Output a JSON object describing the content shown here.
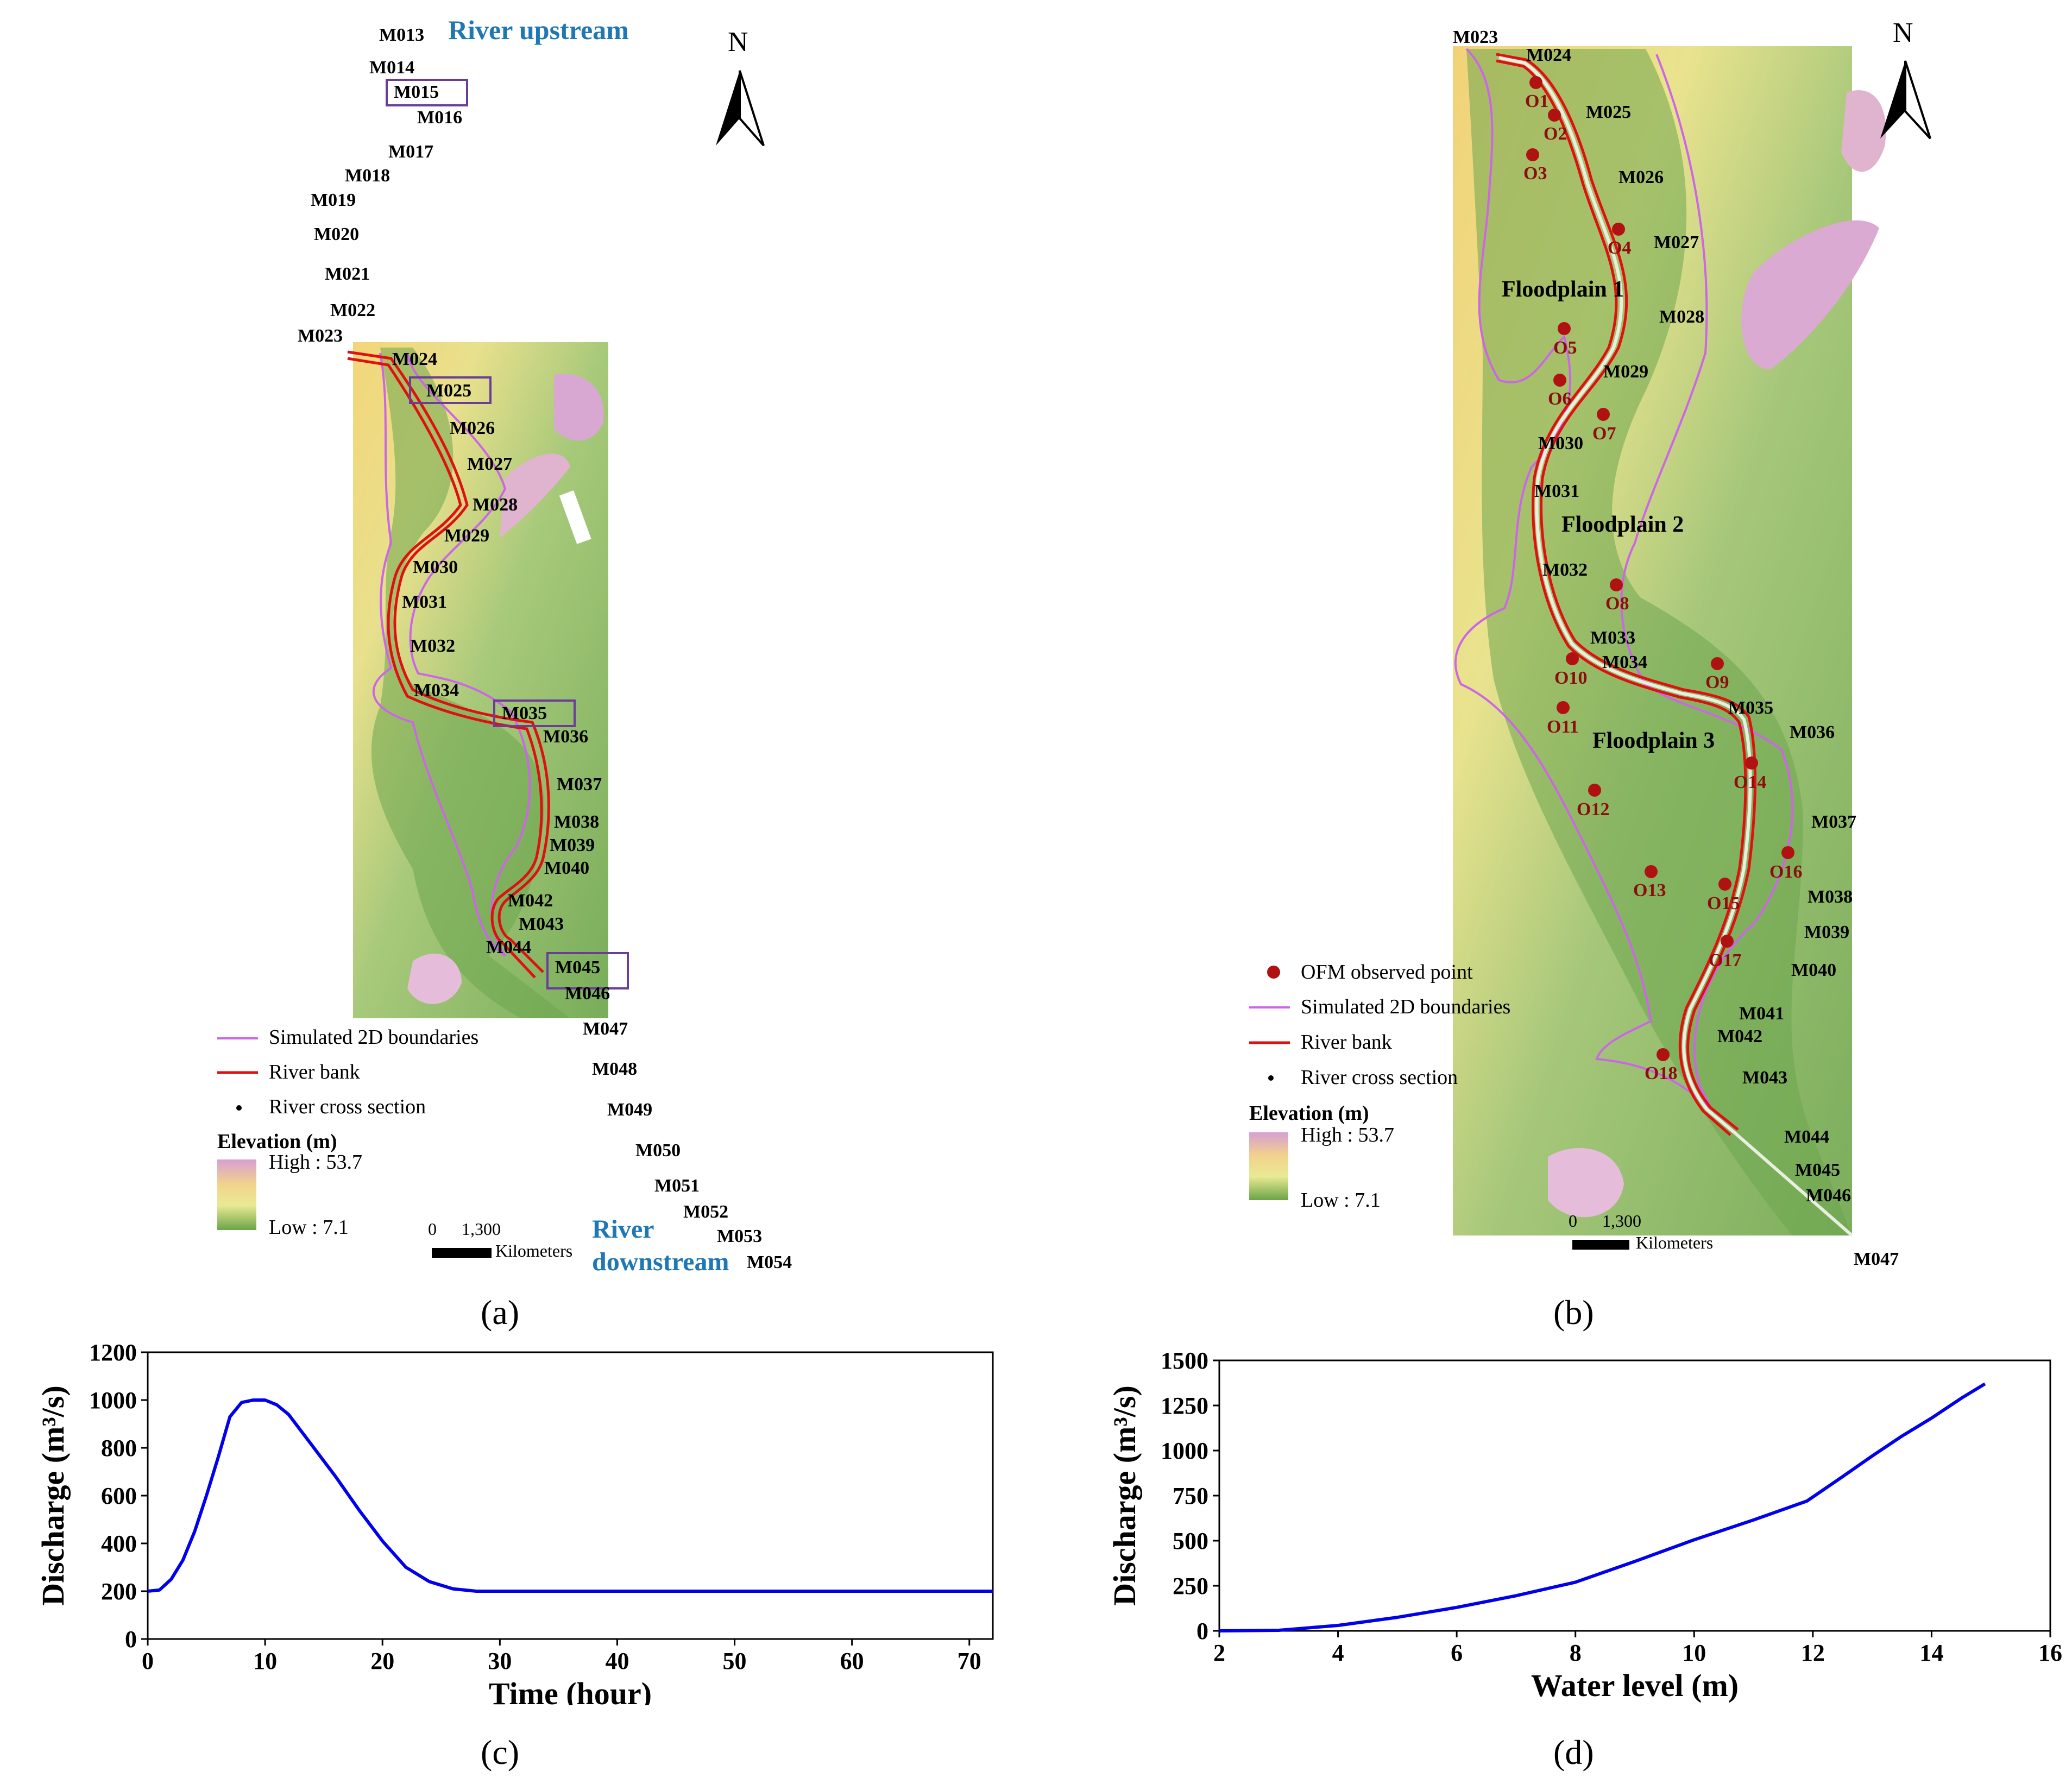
{
  "panels": {
    "a": {
      "caption": "(a)",
      "upstream_label": "River upstream",
      "downstream_label": [
        "River",
        "downstream"
      ],
      "north": "N",
      "cross_sections": [
        {
          "id": "M013"
        },
        {
          "id": "M014"
        },
        {
          "id": "M015",
          "boxed": true
        },
        {
          "id": "M016"
        },
        {
          "id": "M017"
        },
        {
          "id": "M018"
        },
        {
          "id": "M019"
        },
        {
          "id": "M020"
        },
        {
          "id": "M021"
        },
        {
          "id": "M022"
        },
        {
          "id": "M023"
        },
        {
          "id": "M024"
        },
        {
          "id": "M025",
          "boxed": true
        },
        {
          "id": "M026"
        },
        {
          "id": "M027"
        },
        {
          "id": "M028"
        },
        {
          "id": "M029"
        },
        {
          "id": "M030"
        },
        {
          "id": "M031"
        },
        {
          "id": "M032"
        },
        {
          "id": "M034"
        },
        {
          "id": "M035",
          "boxed": true
        },
        {
          "id": "M036"
        },
        {
          "id": "M037"
        },
        {
          "id": "M038"
        },
        {
          "id": "M039"
        },
        {
          "id": "M040"
        },
        {
          "id": "M042"
        },
        {
          "id": "M043"
        },
        {
          "id": "M044"
        },
        {
          "id": "M045",
          "boxed": true
        },
        {
          "id": "M046"
        },
        {
          "id": "M047"
        },
        {
          "id": "M048"
        },
        {
          "id": "M049"
        },
        {
          "id": "M050"
        },
        {
          "id": "M051"
        },
        {
          "id": "M052"
        },
        {
          "id": "M053"
        },
        {
          "id": "M054"
        }
      ],
      "legend": {
        "boundary": "Simulated 2D boundaries",
        "bank": "River bank",
        "section": "River cross section",
        "elev_title": "Elevation (m)",
        "high": "High : 53.7",
        "low": "Low : 7.1"
      },
      "scale": {
        "zero": "0",
        "value": "1,300",
        "unit": "Kilometers"
      }
    },
    "b": {
      "caption": "(b)",
      "north": "N",
      "floodplains": [
        "Floodplain 1",
        "Floodplain 2",
        "Floodplain 3"
      ],
      "cross_sections": [
        "M023",
        "M024",
        "M025",
        "M026",
        "M027",
        "M028",
        "M029",
        "M030",
        "M031",
        "M032",
        "M033",
        "M034",
        "M035",
        "M036",
        "M037",
        "M038",
        "M039",
        "M040",
        "M041",
        "M042",
        "M043",
        "M044",
        "M045",
        "M046",
        "M047"
      ],
      "observed_points": [
        "O1",
        "O2",
        "O3",
        "O4",
        "O5",
        "O6",
        "O7",
        "O8",
        "O9",
        "O10",
        "O11",
        "O12",
        "O13",
        "O14",
        "O15",
        "O16",
        "O17",
        "O18"
      ],
      "legend": {
        "observed": "OFM observed point",
        "boundary": "Simulated 2D boundaries",
        "bank": "River bank",
        "section": "River cross section",
        "elev_title": "Elevation (m)",
        "high": "High : 53.7",
        "low": "Low : 7.1"
      },
      "scale": {
        "zero": "0",
        "value": "1,300",
        "unit": "Kilometers"
      }
    },
    "c": {
      "caption": "(c)"
    },
    "d": {
      "caption": "(d)"
    }
  },
  "colors": {
    "line": "#0000ee",
    "river_bank": "#e01010",
    "boundary": "#cc66e6",
    "observed": "#b01212",
    "box": "#6a3d9a",
    "label_blue": "#1f77b4"
  },
  "chart_data": [
    {
      "type": "line",
      "panel": "c",
      "xlabel": "Time (hour)",
      "ylabel": "Discharge (m³/s)",
      "xlim": [
        0,
        72
      ],
      "ylim": [
        0,
        1200
      ],
      "xticks": [
        0,
        10,
        20,
        30,
        40,
        50,
        60,
        70
      ],
      "yticks": [
        0,
        200,
        400,
        600,
        800,
        1000,
        1200
      ],
      "series": [
        {
          "x": [
            0,
            1,
            2,
            3,
            4,
            5,
            6,
            7,
            8,
            9,
            10,
            11,
            12,
            14,
            16,
            18,
            20,
            22,
            24,
            26,
            28,
            30,
            40,
            50,
            60,
            70,
            72
          ],
          "y": [
            200,
            205,
            250,
            330,
            450,
            600,
            760,
            930,
            990,
            1000,
            1000,
            980,
            940,
            810,
            680,
            540,
            410,
            300,
            240,
            210,
            200,
            200,
            200,
            200,
            200,
            200,
            200
          ]
        }
      ]
    },
    {
      "type": "line",
      "panel": "d",
      "xlabel": "Water level (m)",
      "ylabel": "Discharge (m³/s)",
      "xlim": [
        2,
        16
      ],
      "ylim": [
        0,
        1500
      ],
      "xticks": [
        2,
        4,
        6,
        8,
        10,
        12,
        14,
        16
      ],
      "yticks": [
        0,
        250,
        500,
        750,
        1000,
        1250,
        1500
      ],
      "series": [
        {
          "x": [
            2,
            3,
            4,
            5,
            6,
            7,
            8,
            9,
            10,
            10.5,
            11,
            11.3,
            11.9,
            12.5,
            13,
            13.5,
            14,
            14.5,
            14.9
          ],
          "y": [
            0,
            3,
            30,
            75,
            130,
            195,
            270,
            385,
            505,
            560,
            615,
            650,
            720,
            855,
            970,
            1080,
            1180,
            1290,
            1370
          ]
        }
      ]
    }
  ]
}
